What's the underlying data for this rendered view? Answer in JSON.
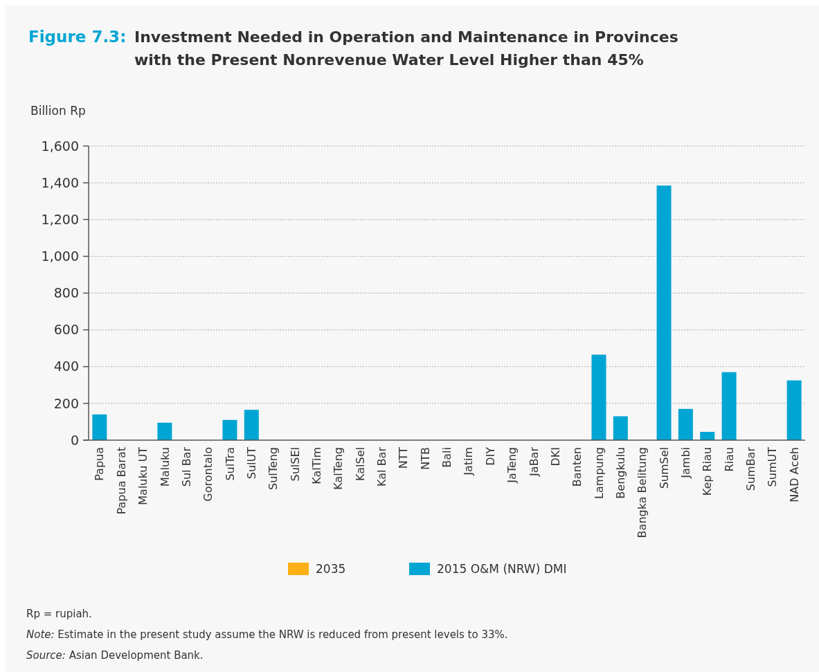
{
  "chart_data": {
    "type": "bar",
    "title": "Figure 7.3:",
    "subtitle": "Investment Needed in Operation and Maintenance in Provinces with the Present Nonrevenue Water Level Higher than 45%",
    "ylabel": "Billion Rp",
    "categories": [
      "Papua",
      "Papua Barat",
      "Maluku UT",
      "Maluku",
      "Sul Bar",
      "Gorontalo",
      "SulTra",
      "SulUT",
      "SulTeng",
      "SulSEl",
      "KalTim",
      "KalTeng",
      "KalSel",
      "Kal Bar",
      "NTT",
      "NTB",
      "Bali",
      "Jatim",
      "DIY",
      "JaTeng",
      "JaBar",
      "DKI",
      "Banten",
      "Lampung",
      "Bengkulu",
      "Bangka Belitung",
      "SumSel",
      "Jambi",
      "Kep Riau",
      "Riau",
      "SumBar",
      "SumUT",
      "NAD Aceh"
    ],
    "series": [
      {
        "name": "2035",
        "color": "#fbb116",
        "values": [
          null,
          null,
          null,
          null,
          null,
          null,
          null,
          null,
          null,
          null,
          null,
          null,
          null,
          null,
          null,
          null,
          null,
          null,
          null,
          null,
          null,
          null,
          null,
          null,
          null,
          null,
          null,
          null,
          null,
          null,
          null,
          null,
          null
        ]
      },
      {
        "name": "2015 O&M (NRW) DMI",
        "color": "#00a5d3",
        "values": [
          140,
          null,
          null,
          95,
          null,
          null,
          110,
          165,
          null,
          null,
          null,
          null,
          null,
          null,
          null,
          null,
          null,
          null,
          null,
          null,
          null,
          null,
          null,
          465,
          130,
          null,
          1385,
          170,
          45,
          370,
          null,
          null,
          325
        ]
      }
    ],
    "ylim": [
      0,
      1600
    ],
    "yticks": [
      {
        "value": 0,
        "label": "0"
      },
      {
        "value": 200,
        "label": "200"
      },
      {
        "value": 400,
        "label": "400"
      },
      {
        "value": 600,
        "label": "600"
      },
      {
        "value": 800,
        "label": "800"
      },
      {
        "value": 1000,
        "label": "1,000"
      },
      {
        "value": 1200,
        "label": "1,200"
      },
      {
        "value": 1400,
        "label": "1,400"
      },
      {
        "value": 1600,
        "label": "1,600"
      }
    ],
    "grid": "y",
    "legend": "bottom",
    "annotations": [
      "Rp = rupiah.",
      "Note: Estimate in the present study assume the NRW is reduced from present levels to 33%.",
      "Source: Asian Development Bank."
    ]
  }
}
